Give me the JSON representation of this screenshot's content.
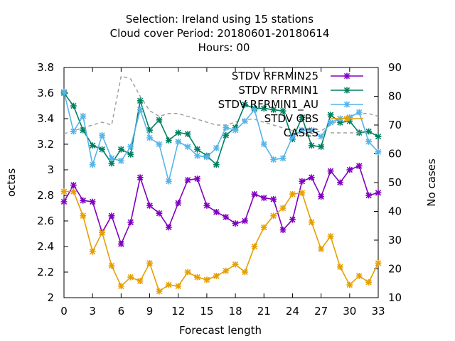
{
  "chart_data": {
    "type": "line",
    "title_lines": [
      "Selection: Ireland using    15 stations",
      "Cloud cover   Period: 20180601-20180614",
      "Hours:  00"
    ],
    "xlabel": "Forecast length",
    "ylabel": "octas",
    "y2label": "No cases",
    "xlim": [
      0,
      33
    ],
    "ylim": [
      2.0,
      3.8
    ],
    "y2lim": [
      10,
      90
    ],
    "xticks": [
      "0",
      "3",
      "6",
      "9",
      "12",
      "15",
      "18",
      "21",
      "24",
      "27",
      "30",
      "33"
    ],
    "yticks": [
      "2",
      "2.2",
      "2.4",
      "2.6",
      "2.8",
      "3",
      "3.2",
      "3.4",
      "3.6",
      "3.8"
    ],
    "y2ticks": [
      "10",
      "20",
      "30",
      "40",
      "50",
      "60",
      "70",
      "80",
      "90"
    ],
    "grid": false,
    "legend_position": "top-right",
    "x": [
      0,
      1,
      2,
      3,
      4,
      5,
      6,
      7,
      8,
      9,
      10,
      11,
      12,
      13,
      14,
      15,
      16,
      17,
      18,
      19,
      20,
      21,
      22,
      23,
      24,
      25,
      26,
      27,
      28,
      29,
      30,
      31,
      32,
      33
    ],
    "series": [
      {
        "name": "STDV RFRMIN25",
        "color": "#8000c0",
        "marker": "x",
        "axis": "y",
        "values": [
          2.75,
          2.88,
          2.76,
          2.75,
          2.51,
          2.64,
          2.42,
          2.59,
          2.94,
          2.72,
          2.66,
          2.55,
          2.74,
          2.92,
          2.93,
          2.72,
          2.67,
          2.63,
          2.58,
          2.6,
          2.81,
          2.78,
          2.77,
          2.53,
          2.61,
          2.91,
          2.94,
          2.79,
          2.99,
          2.9,
          3.0,
          3.03,
          2.8,
          2.82
        ]
      },
      {
        "name": "STDV RFRMIN1",
        "color": "#008060",
        "marker": "x",
        "axis": "y",
        "values": [
          3.6,
          3.5,
          3.31,
          3.19,
          3.16,
          3.05,
          3.16,
          3.12,
          3.54,
          3.31,
          3.39,
          3.23,
          3.29,
          3.28,
          3.16,
          3.11,
          3.04,
          3.27,
          3.33,
          3.51,
          3.48,
          3.48,
          3.47,
          3.46,
          3.24,
          3.41,
          3.19,
          3.18,
          3.43,
          3.37,
          3.38,
          3.29,
          3.3,
          3.26
        ]
      },
      {
        "name": "STDV RFRMIN1_AU",
        "color": "#56b4e9",
        "marker": "x",
        "axis": "y",
        "values": [
          3.61,
          3.3,
          3.42,
          3.04,
          3.27,
          3.09,
          3.07,
          3.18,
          3.47,
          3.25,
          3.2,
          2.91,
          3.22,
          3.18,
          3.11,
          3.1,
          3.17,
          3.33,
          3.31,
          3.38,
          3.47,
          3.2,
          3.08,
          3.09,
          3.26,
          3.31,
          3.31,
          3.26,
          3.37,
          3.4,
          3.41,
          3.45,
          3.22,
          3.14
        ]
      },
      {
        "name": "STDV OBS",
        "color": "#e69f00",
        "marker": "x",
        "axis": "y",
        "values": [
          2.83,
          2.83,
          2.64,
          2.36,
          2.51,
          2.25,
          2.09,
          2.16,
          2.13,
          2.27,
          2.05,
          2.1,
          2.09,
          2.2,
          2.16,
          2.14,
          2.17,
          2.21,
          2.26,
          2.2,
          2.4,
          2.55,
          2.64,
          2.7,
          2.81,
          2.82,
          2.59,
          2.38,
          2.48,
          2.24,
          2.1,
          2.17,
          2.12,
          2.27
        ]
      },
      {
        "name": "CASES",
        "color": "#a0a0a0",
        "marker": "none",
        "dashed": true,
        "axis": "y2",
        "values": [
          67,
          68,
          69,
          70,
          71,
          70,
          87,
          86,
          80,
          75,
          73,
          74,
          74,
          73,
          72,
          71,
          70,
          70,
          71,
          72,
          72,
          71,
          70,
          69,
          68,
          67,
          67,
          68,
          70,
          72,
          73,
          74,
          74,
          73
        ]
      }
    ]
  }
}
